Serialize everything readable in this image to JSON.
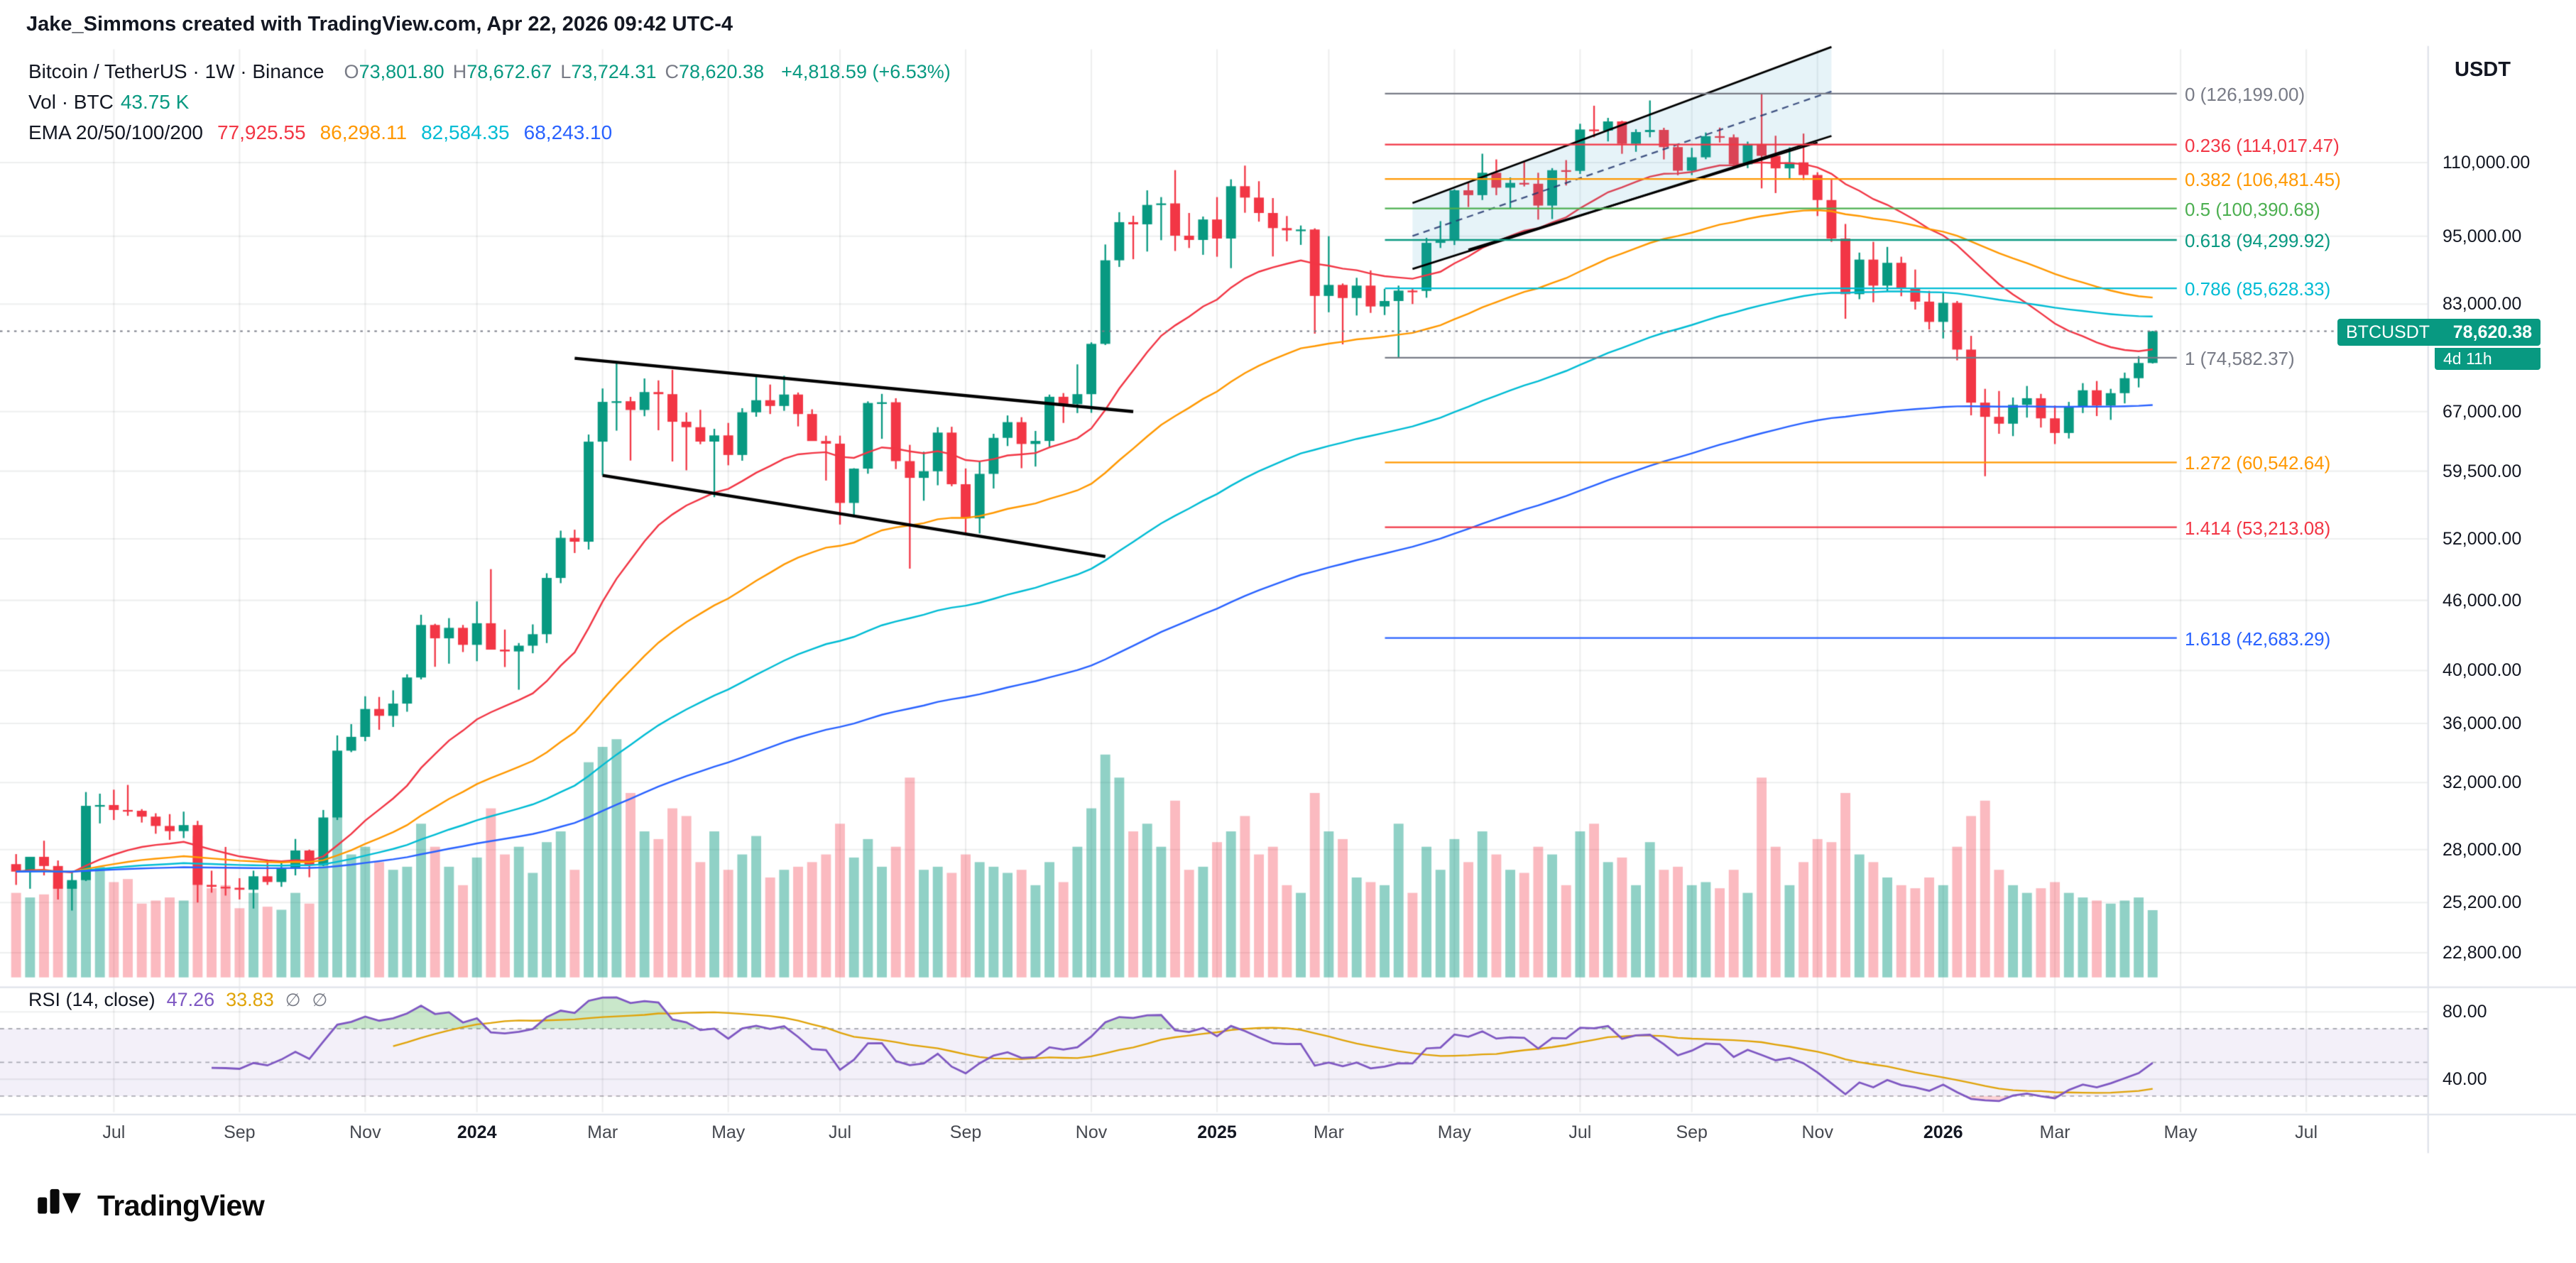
{
  "attribution": "Jake_Simmons created with TradingView.com, Apr 22, 2026 09:42 UTC-4",
  "legend": {
    "symbol_title": "Bitcoin / TetherUS · 1W · Binance",
    "ohlc": {
      "o_label": "O",
      "o": "73,801.80",
      "h_label": "H",
      "h": "78,672.67",
      "l_label": "L",
      "l": "73,724.31",
      "c_label": "C",
      "c": "78,620.38",
      "change": "+4,818.59 (+6.53%)"
    },
    "volume": {
      "label": "Vol · BTC",
      "value": "43.75 K"
    },
    "ema": {
      "label": "EMA 20/50/100/200",
      "values": [
        "77,925.55",
        "86,298.11",
        "82,584.35",
        "68,243.10"
      ],
      "colors": [
        "#f23645",
        "#ff9800",
        "#00bcd4",
        "#2962ff"
      ]
    }
  },
  "rsi_legend": {
    "label": "RSI (14, close)",
    "value": "47.26",
    "value_color": "#7e57c2",
    "ma_value": "33.83",
    "ma_color": "#e0a308",
    "hidden_markers": [
      "∅",
      "∅"
    ]
  },
  "price_axis": {
    "currency": "USDT",
    "ticks": [
      {
        "price": 110000,
        "label": "110,000.00"
      },
      {
        "price": 95000,
        "label": "95,000.00"
      },
      {
        "price": 83000,
        "label": "83,000.00"
      },
      {
        "price": 67000,
        "label": "67,000.00"
      },
      {
        "price": 59500,
        "label": "59,500.00"
      },
      {
        "price": 52000,
        "label": "52,000.00"
      },
      {
        "price": 46000,
        "label": "46,000.00"
      },
      {
        "price": 40000,
        "label": "40,000.00"
      },
      {
        "price": 36000,
        "label": "36,000.00"
      },
      {
        "price": 32000,
        "label": "32,000.00"
      },
      {
        "price": 28000,
        "label": "28,000.00"
      },
      {
        "price": 25200,
        "label": "25,200.00"
      },
      {
        "price": 22800,
        "label": "22,800.00"
      }
    ]
  },
  "rsi_axis": {
    "ticks": [
      {
        "value": 80,
        "label": "80.00"
      },
      {
        "value": 40,
        "label": "40.00"
      }
    ]
  },
  "time_axis": {
    "ticks": [
      {
        "i": 7,
        "label": "Jul"
      },
      {
        "i": 16,
        "label": "Sep"
      },
      {
        "i": 25,
        "label": "Nov"
      },
      {
        "i": 33,
        "label": "2024"
      },
      {
        "i": 42,
        "label": "Mar"
      },
      {
        "i": 51,
        "label": "May"
      },
      {
        "i": 59,
        "label": "Jul"
      },
      {
        "i": 68,
        "label": "Sep"
      },
      {
        "i": 77,
        "label": "Nov"
      },
      {
        "i": 86,
        "label": "2025"
      },
      {
        "i": 94,
        "label": "Mar"
      },
      {
        "i": 103,
        "label": "May"
      },
      {
        "i": 112,
        "label": "Jul"
      },
      {
        "i": 120,
        "label": "Sep"
      },
      {
        "i": 129,
        "label": "Nov"
      },
      {
        "i": 138,
        "label": "2026"
      },
      {
        "i": 146,
        "label": "Mar"
      },
      {
        "i": 155,
        "label": "May"
      },
      {
        "i": 164,
        "label": "Jul"
      }
    ]
  },
  "price_badge": {
    "symbol": "BTCUSDT",
    "price": "78,620.38",
    "countdown": "4d 11h",
    "color": "#089981"
  },
  "fib_levels": [
    {
      "label": "0 (126,199.00)",
      "price": 126199.0,
      "color": "#787b86"
    },
    {
      "label": "0.236 (114,017.47)",
      "price": 114017.47,
      "color": "#f23645"
    },
    {
      "label": "0.382 (106,481.45)",
      "price": 106481.45,
      "color": "#ff9800"
    },
    {
      "label": "0.5 (100,390.68)",
      "price": 100390.68,
      "color": "#4caf50"
    },
    {
      "label": "0.618 (94,299.92)",
      "price": 94299.92,
      "color": "#089981"
    },
    {
      "label": "0.786 (85,628.33)",
      "price": 85628.33,
      "color": "#00bcd4"
    },
    {
      "label": "1 (74,582.37)",
      "price": 74582.37,
      "color": "#787b86"
    },
    {
      "label": "1.272 (60,542.64)",
      "price": 60542.64,
      "color": "#ff9800"
    },
    {
      "label": "1.414 (53,213.08)",
      "price": 53213.08,
      "color": "#f23645"
    },
    {
      "label": "1.618 (42,683.29)",
      "price": 42683.29,
      "color": "#2962ff"
    }
  ],
  "footer": {
    "brand": "TradingView"
  },
  "chart_data": {
    "type": "candlestick",
    "symbol": "BTCUSDT",
    "exchange": "Binance",
    "interval": "1W",
    "scale": "log",
    "start_date": "2023-05-15",
    "interval_days": 7,
    "up_color": "#089981",
    "down_color": "#f23645",
    "last_price": 78620.38,
    "candle_format": [
      "open",
      "high",
      "low",
      "close",
      "volume_kBTC"
    ],
    "candles": [
      [
        27200,
        27750,
        26100,
        26800,
        55
      ],
      [
        26800,
        27150,
        25900,
        27600,
        52
      ],
      [
        27600,
        28500,
        26600,
        27100,
        54
      ],
      [
        27100,
        27400,
        25350,
        25900,
        60
      ],
      [
        25900,
        26800,
        24800,
        26350,
        62
      ],
      [
        26350,
        31400,
        26300,
        30550,
        95
      ],
      [
        30550,
        31300,
        29500,
        30600,
        72
      ],
      [
        30600,
        31550,
        29700,
        30300,
        62
      ],
      [
        30300,
        31850,
        29950,
        30250,
        64
      ],
      [
        30250,
        30350,
        29550,
        29900,
        48
      ],
      [
        29900,
        30100,
        28900,
        29350,
        50
      ],
      [
        29350,
        30050,
        28550,
        29050,
        52
      ],
      [
        29050,
        30200,
        28650,
        29400,
        50
      ],
      [
        29400,
        29650,
        25200,
        26100,
        92
      ],
      [
        26100,
        26850,
        25700,
        26000,
        58
      ],
      [
        26000,
        28150,
        25550,
        25950,
        60
      ],
      [
        25950,
        26450,
        25350,
        25850,
        45
      ],
      [
        25850,
        26850,
        24900,
        26550,
        55
      ],
      [
        26550,
        27450,
        26100,
        26250,
        46
      ],
      [
        26250,
        27300,
        26000,
        26950,
        44
      ],
      [
        26950,
        28600,
        26600,
        27950,
        55
      ],
      [
        27950,
        28000,
        26500,
        27150,
        48
      ],
      [
        27150,
        30300,
        27100,
        29850,
        75
      ],
      [
        29850,
        35150,
        29700,
        34100,
        105
      ],
      [
        34100,
        35950,
        34000,
        35050,
        80
      ],
      [
        35050,
        38000,
        34750,
        37050,
        85
      ],
      [
        37050,
        37950,
        35550,
        36550,
        75
      ],
      [
        36550,
        38450,
        35750,
        37450,
        70
      ],
      [
        37450,
        39700,
        36850,
        39450,
        72
      ],
      [
        39450,
        44700,
        39300,
        43800,
        100
      ],
      [
        43800,
        43900,
        40300,
        42650,
        85
      ],
      [
        42650,
        44400,
        40550,
        43550,
        72
      ],
      [
        43550,
        43800,
        41500,
        42100,
        60
      ],
      [
        42100,
        45900,
        40750,
        43950,
        78
      ],
      [
        43950,
        48950,
        41850,
        41700,
        110
      ],
      [
        41700,
        43400,
        40280,
        41550,
        80
      ],
      [
        41550,
        42250,
        38500,
        42030,
        85
      ],
      [
        42030,
        43850,
        41400,
        43000,
        68
      ],
      [
        43000,
        48550,
        42250,
        48100,
        88
      ],
      [
        48100,
        52850,
        47600,
        52100,
        95
      ],
      [
        52100,
        52950,
        50550,
        51700,
        70
      ],
      [
        51700,
        64000,
        50900,
        63100,
        140
      ],
      [
        63100,
        70150,
        59000,
        68300,
        150
      ],
      [
        68300,
        73800,
        64500,
        68390,
        155
      ],
      [
        68390,
        68990,
        60770,
        67210,
        120
      ],
      [
        67210,
        71560,
        66380,
        69650,
        95
      ],
      [
        69650,
        71290,
        64550,
        69360,
        90
      ],
      [
        69360,
        72800,
        60660,
        65650,
        110
      ],
      [
        65650,
        66880,
        59600,
        64940,
        105
      ],
      [
        64940,
        67230,
        62780,
        63110,
        75
      ],
      [
        63110,
        64730,
        56500,
        63890,
        95
      ],
      [
        63890,
        65500,
        60200,
        61450,
        70
      ],
      [
        61450,
        67450,
        60750,
        66900,
        80
      ],
      [
        66900,
        71980,
        66310,
        68530,
        92
      ],
      [
        68530,
        70700,
        66670,
        67750,
        65
      ],
      [
        67750,
        71950,
        67100,
        69310,
        70
      ],
      [
        69310,
        69590,
        65050,
        66670,
        72
      ],
      [
        66670,
        67300,
        63380,
        63180,
        75
      ],
      [
        63180,
        63850,
        58400,
        62850,
        80
      ],
      [
        62850,
        63860,
        53500,
        55850,
        100
      ],
      [
        55850,
        59850,
        54260,
        59800,
        78
      ],
      [
        59800,
        68370,
        59200,
        68150,
        90
      ],
      [
        68150,
        69400,
        63460,
        68250,
        72
      ],
      [
        68250,
        68800,
        59750,
        60700,
        85
      ],
      [
        60700,
        62700,
        49000,
        58710,
        130
      ],
      [
        58710,
        61850,
        56100,
        59490,
        70
      ],
      [
        59490,
        64950,
        57850,
        64250,
        72
      ],
      [
        64250,
        65000,
        57740,
        57970,
        68
      ],
      [
        57970,
        59820,
        52530,
        54160,
        80
      ],
      [
        54160,
        60600,
        52550,
        59180,
        75
      ],
      [
        59180,
        64100,
        57480,
        63580,
        72
      ],
      [
        63580,
        66480,
        62550,
        65600,
        68
      ],
      [
        65600,
        66250,
        59850,
        62810,
        70
      ],
      [
        62810,
        64460,
        60050,
        63190,
        60
      ],
      [
        63190,
        69300,
        62440,
        69000,
        75
      ],
      [
        69000,
        69510,
        65500,
        68000,
        62
      ],
      [
        68000,
        73600,
        66800,
        69360,
        85
      ],
      [
        69360,
        76900,
        66830,
        76670,
        110
      ],
      [
        76670,
        93450,
        76500,
        90550,
        145
      ],
      [
        90550,
        99660,
        89370,
        97700,
        130
      ],
      [
        97700,
        98950,
        90750,
        97280,
        95
      ],
      [
        97280,
        104090,
        92150,
        101110,
        100
      ],
      [
        101110,
        102700,
        94250,
        101420,
        85
      ],
      [
        101420,
        108360,
        92250,
        95100,
        115
      ],
      [
        95100,
        99500,
        92800,
        94300,
        70
      ],
      [
        94300,
        98800,
        91550,
        98220,
        72
      ],
      [
        98220,
        102700,
        91200,
        94570,
        88
      ],
      [
        94570,
        106400,
        89150,
        104950,
        95
      ],
      [
        104950,
        109350,
        99550,
        102600,
        105
      ],
      [
        102600,
        106000,
        97800,
        99500,
        80
      ],
      [
        99500,
        102500,
        91250,
        96550,
        85
      ],
      [
        96550,
        98900,
        94050,
        96120,
        60
      ],
      [
        96120,
        97050,
        93380,
        96280,
        55
      ],
      [
        96280,
        96500,
        78250,
        84350,
        120
      ],
      [
        84350,
        95000,
        81650,
        86220,
        95
      ],
      [
        86220,
        86470,
        76600,
        84000,
        90
      ],
      [
        84000,
        87450,
        81130,
        86100,
        65
      ],
      [
        86100,
        88750,
        81550,
        82600,
        62
      ],
      [
        82600,
        85550,
        81200,
        83500,
        60
      ],
      [
        83500,
        86100,
        74500,
        85250,
        100
      ],
      [
        85250,
        85650,
        83000,
        85200,
        55
      ],
      [
        85200,
        94700,
        84050,
        93750,
        85
      ],
      [
        93750,
        97900,
        92800,
        94280,
        70
      ],
      [
        94280,
        104300,
        93350,
        104100,
        90
      ],
      [
        104100,
        105800,
        100700,
        103100,
        75
      ],
      [
        103100,
        111970,
        102100,
        107800,
        95
      ],
      [
        107800,
        110700,
        103100,
        104650,
        80
      ],
      [
        104650,
        106800,
        100400,
        105650,
        70
      ],
      [
        105650,
        110300,
        104900,
        105470,
        68
      ],
      [
        105470,
        107800,
        98200,
        100980,
        85
      ],
      [
        100980,
        108800,
        98300,
        108350,
        80
      ],
      [
        108350,
        110550,
        105100,
        108210,
        60
      ],
      [
        108210,
        118850,
        107550,
        117500,
        95
      ],
      [
        117500,
        123200,
        115700,
        117250,
        100
      ],
      [
        117250,
        120250,
        114750,
        119400,
        75
      ],
      [
        119400,
        119550,
        111950,
        114200,
        78
      ],
      [
        114200,
        117550,
        112400,
        116900,
        60
      ],
      [
        116900,
        124500,
        115700,
        117400,
        88
      ],
      [
        117400,
        117900,
        110700,
        113450,
        70
      ],
      [
        113450,
        113800,
        107270,
        108240,
        72
      ],
      [
        108240,
        113300,
        107300,
        111170,
        60
      ],
      [
        111170,
        116800,
        110750,
        115950,
        62
      ],
      [
        115950,
        117950,
        114500,
        115680,
        58
      ],
      [
        115680,
        116350,
        108650,
        109620,
        70
      ],
      [
        109620,
        114700,
        108800,
        114150,
        55
      ],
      [
        114150,
        126199,
        104500,
        111500,
        130
      ],
      [
        111500,
        116050,
        103530,
        108750,
        85
      ],
      [
        108750,
        113400,
        106400,
        110050,
        60
      ],
      [
        110050,
        116550,
        106260,
        107320,
        75
      ],
      [
        107320,
        107900,
        98900,
        102100,
        90
      ],
      [
        102100,
        106650,
        93950,
        94560,
        88
      ],
      [
        94560,
        97350,
        80600,
        84650,
        120
      ],
      [
        84650,
        91950,
        83800,
        90680,
        80
      ],
      [
        90680,
        93950,
        83300,
        86100,
        75
      ],
      [
        86100,
        93000,
        85100,
        90100,
        65
      ],
      [
        90100,
        91200,
        84300,
        85600,
        60
      ],
      [
        85600,
        88900,
        82100,
        83400,
        58
      ],
      [
        83400,
        85200,
        78900,
        80100,
        65
      ],
      [
        80100,
        84800,
        77500,
        83200,
        60
      ],
      [
        83200,
        83500,
        74200,
        75800,
        85
      ],
      [
        75800,
        77900,
        66500,
        68200,
        105
      ],
      [
        68200,
        70100,
        58900,
        66300,
        115
      ],
      [
        66300,
        69800,
        64100,
        65400,
        70
      ],
      [
        65400,
        68900,
        63800,
        67900,
        60
      ],
      [
        67900,
        70500,
        66200,
        68800,
        55
      ],
      [
        68800,
        69400,
        64900,
        66100,
        58
      ],
      [
        66100,
        67800,
        62800,
        64200,
        62
      ],
      [
        64200,
        68300,
        63500,
        67600,
        55
      ],
      [
        67600,
        70900,
        66800,
        69900,
        52
      ],
      [
        69900,
        71200,
        66400,
        67800,
        50
      ],
      [
        67800,
        70100,
        65900,
        69500,
        48
      ],
      [
        69500,
        72400,
        68100,
        71600,
        50
      ],
      [
        71600,
        74800,
        70300,
        73801.79,
        52
      ],
      [
        73801.8,
        78672.67,
        73724.31,
        78620.38,
        43.75
      ]
    ],
    "emas": [
      {
        "period": 20,
        "color": "#f23645"
      },
      {
        "period": 50,
        "color": "#ff9800"
      },
      {
        "period": 100,
        "color": "#00bcd4"
      },
      {
        "period": 200,
        "color": "#2962ff"
      }
    ],
    "rsi": {
      "period": 14,
      "color": "#7e57c2",
      "ma_period": 14,
      "ma_color": "#e0a308",
      "bands": [
        70,
        50,
        30
      ]
    },
    "drawings": {
      "descending_channel": {
        "color": "#000000",
        "upper": {
          "from": [
            40,
            74500
          ],
          "to": [
            80,
            67000
          ]
        },
        "lower": {
          "from": [
            42,
            59000
          ],
          "to": [
            78,
            50200
          ]
        }
      },
      "ascending_channel": {
        "color": "#000000",
        "fill": "rgba(60,160,200,0.13)",
        "from_index": 100,
        "to_index": 130,
        "lower": [
          89000,
          116000
        ],
        "upper": [
          101500,
          138500
        ],
        "midline_dashed": true
      },
      "trendline": {
        "color": "#000000",
        "from": [
          104,
          92500
        ],
        "to": [
          129,
          114500
        ]
      }
    }
  }
}
